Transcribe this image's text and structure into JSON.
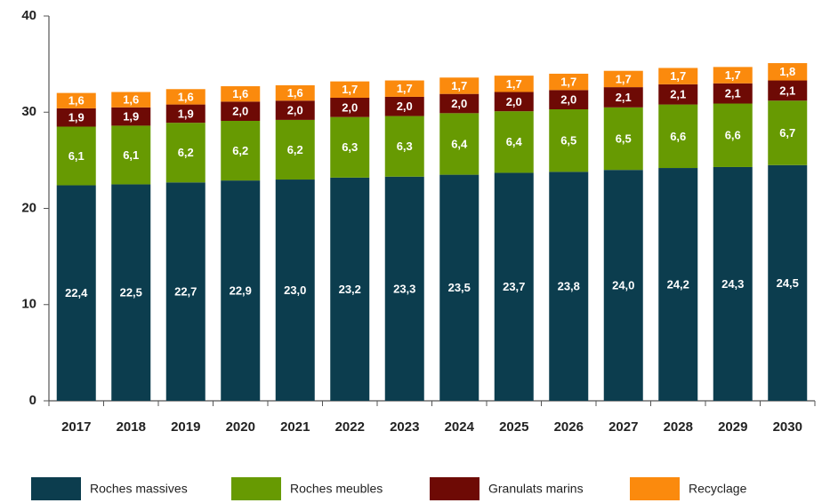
{
  "chart_data": {
    "type": "stacked_bar",
    "categories": [
      "2017",
      "2018",
      "2019",
      "2020",
      "2021",
      "2022",
      "2023",
      "2024",
      "2025",
      "2026",
      "2027",
      "2028",
      "2029",
      "2030"
    ],
    "series": [
      {
        "name": "Roches massives",
        "color": "#0c3d4e",
        "values": [
          22.4,
          22.5,
          22.7,
          22.9,
          23.0,
          23.2,
          23.3,
          23.5,
          23.7,
          23.8,
          24.0,
          24.2,
          24.3,
          24.5
        ],
        "value_labels": [
          "22,4",
          "22,5",
          "22,7",
          "22,9",
          "23,0",
          "23,2",
          "23,3",
          "23,5",
          "23,7",
          "23,8",
          "24,0",
          "24,2",
          "24,3",
          "24,5"
        ]
      },
      {
        "name": "Roches meubles",
        "color": "#679a02",
        "values": [
          6.1,
          6.1,
          6.2,
          6.2,
          6.2,
          6.3,
          6.3,
          6.4,
          6.4,
          6.5,
          6.5,
          6.6,
          6.6,
          6.7
        ],
        "value_labels": [
          "6,1",
          "6,1",
          "6,2",
          "6,2",
          "6,2",
          "6,3",
          "6,3",
          "6,4",
          "6,4",
          "6,5",
          "6,5",
          "6,6",
          "6,6",
          "6,7"
        ]
      },
      {
        "name": "Granulats marins",
        "color": "#6e0a05",
        "values": [
          1.9,
          1.9,
          1.9,
          2.0,
          2.0,
          2.0,
          2.0,
          2.0,
          2.0,
          2.0,
          2.1,
          2.1,
          2.1,
          2.1
        ],
        "value_labels": [
          "1,9",
          "1,9",
          "1,9",
          "2,0",
          "2,0",
          "2,0",
          "2,0",
          "2,0",
          "2,0",
          "2,0",
          "2,1",
          "2,1",
          "2,1",
          "2,1"
        ]
      },
      {
        "name": "Recyclage",
        "color": "#fb8a0d",
        "values": [
          1.6,
          1.6,
          1.6,
          1.6,
          1.6,
          1.7,
          1.7,
          1.7,
          1.7,
          1.7,
          1.7,
          1.7,
          1.7,
          1.8
        ],
        "value_labels": [
          "1,6",
          "1,6",
          "1,6",
          "1,6",
          "1,6",
          "1,7",
          "1,7",
          "1,7",
          "1,7",
          "1,7",
          "1,7",
          "1,7",
          "1,7",
          "1,8"
        ]
      }
    ],
    "ylim": [
      0,
      40
    ],
    "yticks": [
      0,
      10,
      20,
      30,
      40
    ],
    "grid": false,
    "legend": "bottom"
  }
}
